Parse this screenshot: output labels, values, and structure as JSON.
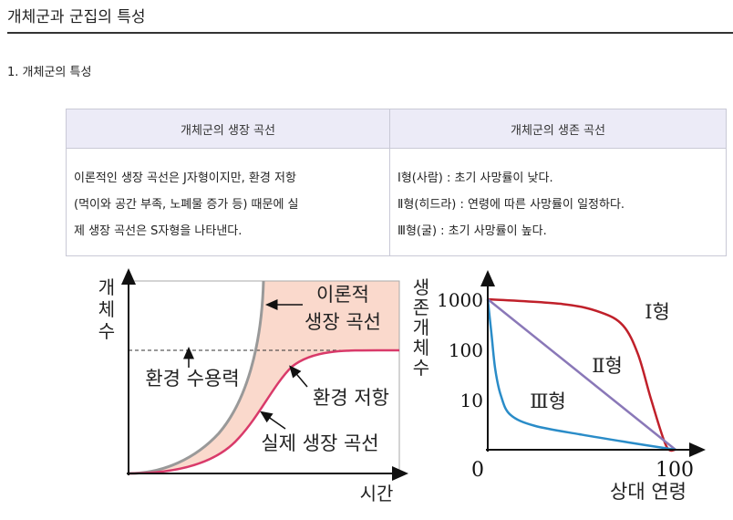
{
  "page": {
    "title": "개체군과 군집의 특성",
    "section": "1. 개체군의 특성"
  },
  "table": {
    "headers": [
      "개체군의 생장 곡선",
      "개체군의 생존 곡선"
    ],
    "growth_lines": [
      "이론적인 생장 곡선은 J자형이지만, 환경 저항",
      "(먹이와 공간 부족, 노폐물 증가 등) 때문에 실",
      "제 생장 곡선은 S자형을 나타낸다."
    ],
    "survival_lines": [
      "Ⅰ형(사람) : 초기 사망률이 낮다.",
      "Ⅱ형(히드라) : 연령에 따른 사망률이 일정하다.",
      "Ⅲ형(굴) : 초기 사망률이 높다."
    ]
  },
  "chart_data": [
    {
      "type": "line",
      "xlabel": "시간",
      "ylabel": "개체수",
      "series": [
        {
          "name": "이론적 생장 곡선",
          "color": "#999999"
        },
        {
          "name": "실제 생장 곡선",
          "color": "#d93a6a"
        }
      ],
      "annotations": {
        "theoretical": [
          "이론적",
          "생장 곡선"
        ],
        "capacity": "환경 수용력",
        "resistance": "환경 저항",
        "actual": "실제 생장 곡선"
      },
      "shaded_region_color": "#fad9cc"
    },
    {
      "type": "line",
      "xlabel": "상대 연령",
      "ylabel": "생존개체수",
      "y_scale": "log",
      "yticks": [
        "1000",
        "100",
        "10"
      ],
      "xticks": [
        "0",
        "100"
      ],
      "series": [
        {
          "name": "Ⅰ형",
          "color": "#c0202a",
          "points": [
            [
              0,
              1000
            ],
            [
              40,
              800
            ],
            [
              60,
              550
            ],
            [
              72,
              300
            ],
            [
              80,
              80
            ],
            [
              87,
              10
            ],
            [
              95,
              1.2
            ],
            [
              100,
              1
            ]
          ]
        },
        {
          "name": "Ⅱ형",
          "color": "#8a78b8",
          "points": [
            [
              0,
              1000
            ],
            [
              100,
              1
            ]
          ]
        },
        {
          "name": "Ⅲ형",
          "color": "#2a8cc8",
          "points": [
            [
              0,
              1000
            ],
            [
              2,
              200
            ],
            [
              4,
              40
            ],
            [
              7,
              12
            ],
            [
              12,
              5
            ],
            [
              25,
              3
            ],
            [
              50,
              2
            ],
            [
              75,
              1.4
            ],
            [
              100,
              1
            ]
          ]
        }
      ]
    }
  ]
}
